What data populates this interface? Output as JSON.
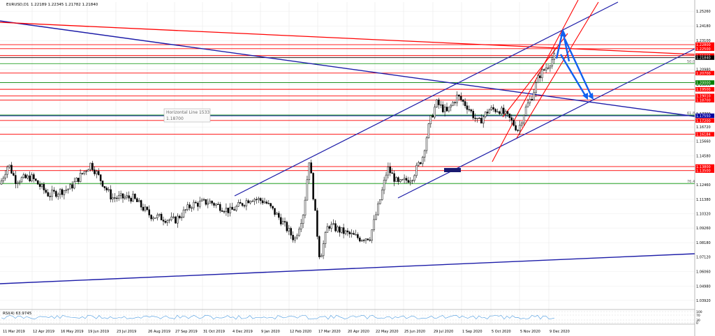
{
  "chart_data": {
    "type": "candlestick",
    "symbol_header": "EURUSD,D1",
    "ohlc_header": "1.22189 1.22345 1.21782 1.21840",
    "price_axis_ticks": [
      "1.25260",
      "1.24180",
      "1.23100",
      "1.22020",
      "1.20980",
      "1.19860",
      "1.18780",
      "1.17700",
      "1.16720",
      "1.15660",
      "1.14580",
      "1.13480",
      "1.12460",
      "1.11380",
      "1.10320",
      "1.09260",
      "1.08180",
      "1.07120",
      "1.06060",
      "1.04980",
      "1.03920"
    ],
    "date_axis_ticks": [
      "11 Mar 2019",
      "12 Apr 2019",
      "16 May 2019",
      "19 Jun 2019",
      "23 Jul 2019",
      "26 Aug 2019",
      "27 Sep 2019",
      "31 Oct 2019",
      "4 Dec 2019",
      "9 Jan 2020",
      "12 Feb 2020",
      "17 Mar 2020",
      "20 Apr 2020",
      "22 May 2020",
      "25 Jun 2020",
      "29 Jul 2020",
      "1 Sep 2020",
      "5 Oct 2020",
      "5 Nov 2020",
      "9 Dec 2020"
    ],
    "price_range": [
      1.0345,
      1.2594
    ],
    "horizontal_levels": [
      {
        "price": 1.228,
        "label": "1.22800",
        "color": "#ff0000"
      },
      {
        "price": 1.225,
        "label": "1.22500",
        "color": "#ff0000"
      },
      {
        "price": 1.2199,
        "label": "1.21990",
        "color": "#ff0000"
      },
      {
        "price": 1.2184,
        "label": "1.21840",
        "color": "#000000"
      },
      {
        "price": 1.207,
        "label": "1.20700",
        "color": "#ff0000"
      },
      {
        "price": 1.2,
        "label": "1.20000",
        "color": "#008000"
      },
      {
        "price": 1.195,
        "label": "1.19500",
        "color": "#ff0000"
      },
      {
        "price": 1.1901,
        "label": "1.19010",
        "color": "#ff0000"
      },
      {
        "price": 1.187,
        "label": "1.18700",
        "color": "#ff0000"
      },
      {
        "price": 1.1755,
        "label": "1.17550",
        "color": "#0000a0"
      },
      {
        "price": 1.172,
        "label": "1.17200",
        "color": "#ff0000"
      },
      {
        "price": 1.16184,
        "label": "1.16184",
        "color": "#ff0000"
      },
      {
        "price": 1.138,
        "label": "1.13800",
        "color": "#ff0000"
      },
      {
        "price": 1.135,
        "label": "1.13500",
        "color": "#ff0000"
      }
    ],
    "fib_labels": [
      "50.0",
      "61.8",
      "76.4"
    ],
    "tooltip": {
      "title": "Horizontal Line 1533",
      "value": "1.18700"
    },
    "rsi_header": "RSI(4) 63.9745",
    "rsi_ticks": [
      "100",
      "70",
      "30",
      "0"
    ],
    "colors": {
      "up_candle": "#000000",
      "down_candle": "#000000",
      "trendline_blue": "#1c1ca8",
      "trendline_red": "#ff0000",
      "arrow_blue": "#1060f0",
      "fib_green": "#009000"
    }
  }
}
